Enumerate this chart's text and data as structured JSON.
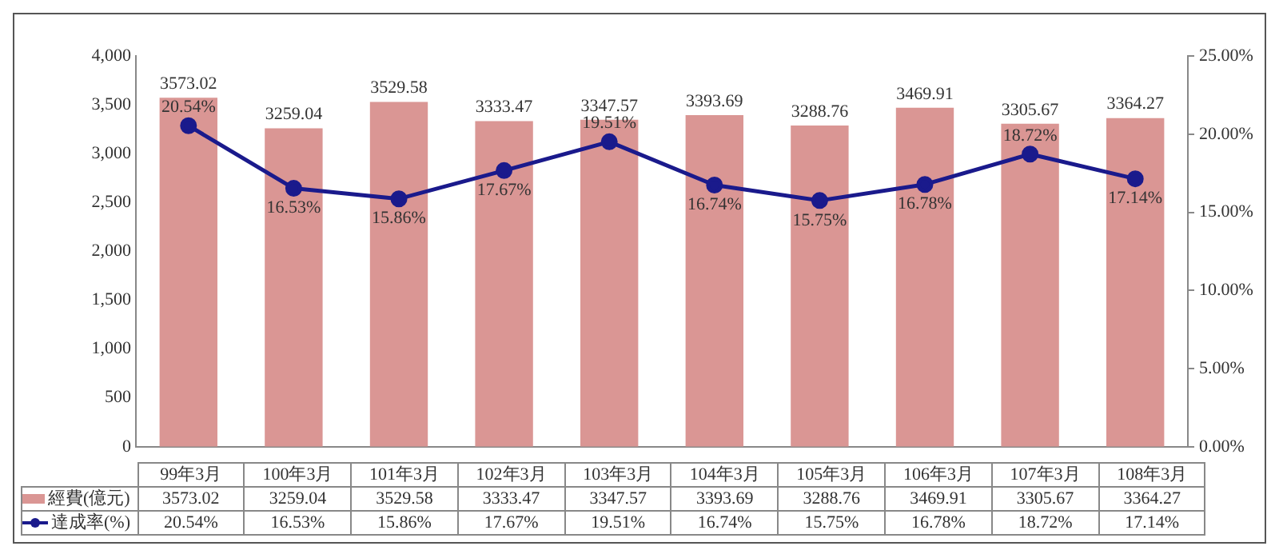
{
  "chart_data": {
    "type": "bar",
    "categories": [
      "99年3月",
      "100年3月",
      "101年3月",
      "102年3月",
      "103年3月",
      "104年3月",
      "105年3月",
      "106年3月",
      "107年3月",
      "108年3月"
    ],
    "series": [
      {
        "name": "經費(億元)",
        "color": "#da9694",
        "values": [
          3573.02,
          3259.04,
          3529.58,
          3333.47,
          3347.57,
          3393.69,
          3288.76,
          3469.91,
          3305.67,
          3364.27
        ],
        "value_labels": [
          "3573.02",
          "3259.04",
          "3529.58",
          "3333.47",
          "3347.57",
          "3393.69",
          "3288.76",
          "3469.91",
          "3305.67",
          "3364.27"
        ]
      },
      {
        "name": "達成率(%)",
        "type": "line",
        "axis": "y2",
        "color": "#1a1a8c",
        "marker": "circle",
        "values": [
          20.54,
          16.53,
          15.86,
          17.67,
          19.51,
          16.74,
          15.75,
          16.78,
          18.72,
          17.14
        ],
        "value_labels": [
          "20.54%",
          "16.53%",
          "15.86%",
          "17.67%",
          "19.51%",
          "16.74%",
          "15.75%",
          "16.78%",
          "18.72%",
          "17.14%"
        ]
      }
    ],
    "ylim": [
      0,
      4000
    ],
    "yticks": [
      0,
      500,
      {
        "value": 1000,
        "label": "1,000"
      },
      {
        "value": 1500,
        "label": "1,500"
      },
      {
        "value": 2000,
        "label": "2,000"
      },
      {
        "value": 2500,
        "label": "2,500"
      },
      {
        "value": 3000,
        "label": "3,000"
      },
      {
        "value": 3500,
        "label": "3,500"
      },
      {
        "value": 4000,
        "label": "4,000"
      }
    ],
    "y2lim": [
      0,
      25
    ],
    "y2ticks": [
      {
        "value": 0,
        "label": "0.00%"
      },
      {
        "value": 5,
        "label": "5.00%"
      },
      {
        "value": 10,
        "label": "10.00%"
      },
      {
        "value": 15,
        "label": "15.00%"
      },
      {
        "value": 20,
        "label": "20.00%"
      },
      {
        "value": 25,
        "label": "25.00%"
      }
    ],
    "grid": false,
    "legend": "bottom"
  }
}
